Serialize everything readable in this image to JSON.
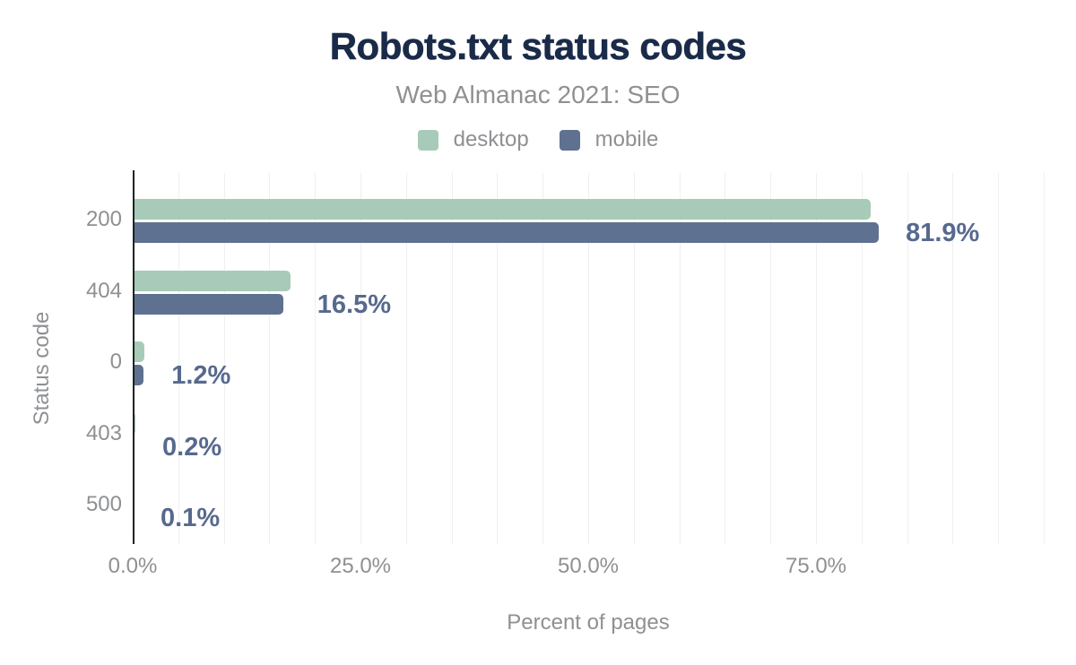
{
  "chart_data": {
    "type": "bar",
    "orientation": "horizontal",
    "title": "Robots.txt status codes",
    "subtitle": "Web Almanac 2021: SEO",
    "xlabel": "Percent of pages",
    "ylabel": "Status code",
    "categories": [
      "200",
      "404",
      "0",
      "403",
      "500"
    ],
    "series": [
      {
        "name": "desktop",
        "color": "#a7cbb8",
        "values": [
          81.0,
          17.3,
          1.3,
          0.3,
          0.1
        ]
      },
      {
        "name": "mobile",
        "color": "#5f7190",
        "values": [
          81.9,
          16.5,
          1.2,
          0.2,
          0.1
        ]
      }
    ],
    "value_labels": [
      "81.9%",
      "16.5%",
      "1.2%",
      "0.2%",
      "0.1%"
    ],
    "x_ticks": [
      {
        "value": 0,
        "label": "0.0%"
      },
      {
        "value": 25,
        "label": "25.0%"
      },
      {
        "value": 50,
        "label": "50.0%"
      },
      {
        "value": 75,
        "label": "75.0%"
      }
    ],
    "xlim": [
      0,
      100
    ],
    "grid_step": 5,
    "legend_position": "top"
  },
  "colors": {
    "title": "#1a2b49",
    "muted_text": "#8e9093",
    "value_label": "#57698e",
    "axis_line": "#202124",
    "gridline": "#efefef",
    "background": "#ffffff"
  }
}
